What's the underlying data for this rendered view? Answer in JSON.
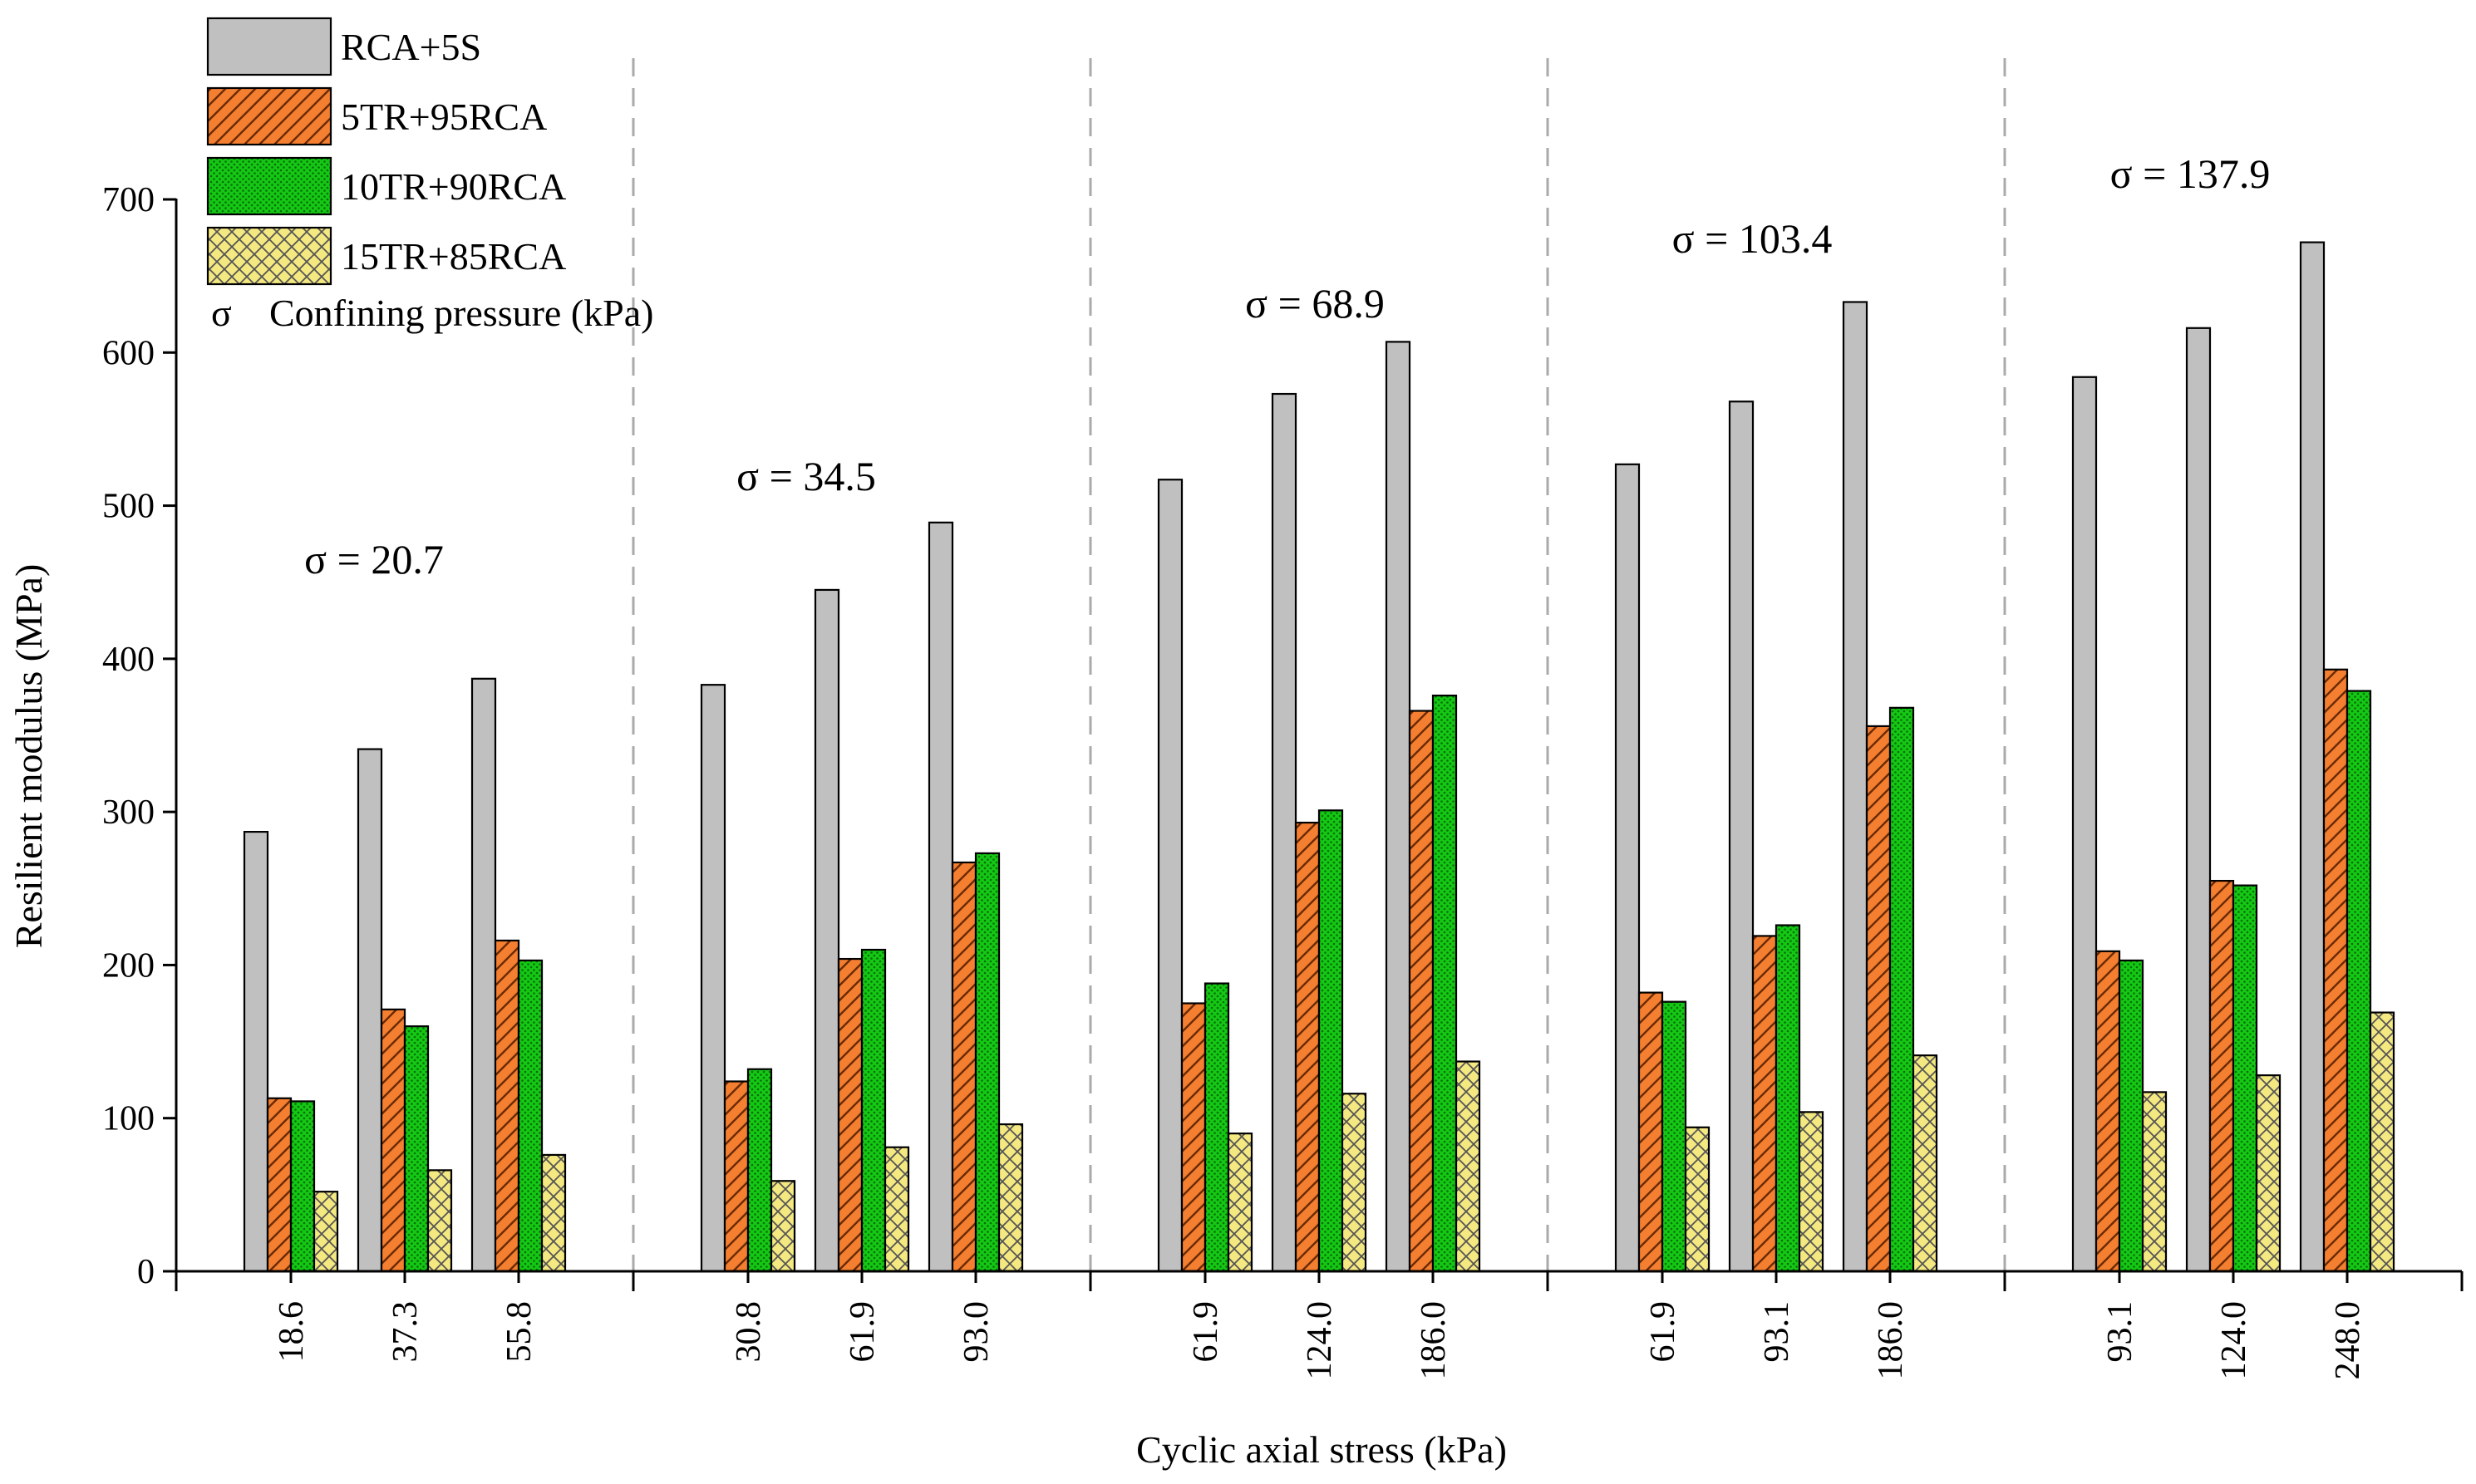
{
  "chart_data": {
    "type": "bar",
    "xlabel": "Cyclic axial stress (kPa)",
    "ylabel": "Resilient modulus (MPa)",
    "ylim": [
      0,
      700
    ],
    "yticks": [
      0,
      100,
      200,
      300,
      400,
      500,
      600,
      700
    ],
    "grid": false,
    "legend_position": "top-left",
    "legend_note": {
      "symbol": "σ",
      "text": "Confining pressure (kPa)"
    },
    "categories": [
      "18.6",
      "37.3",
      "55.8",
      "30.8",
      "61.9",
      "93.0",
      "61.9",
      "124.0",
      "186.0",
      "61.9",
      "93.1",
      "186.0",
      "93.1",
      "124.0",
      "248.0"
    ],
    "groups": [
      {
        "label": "σ = 20.7",
        "categories": [
          0,
          1,
          2
        ]
      },
      {
        "label": "σ = 34.5",
        "categories": [
          3,
          4,
          5
        ]
      },
      {
        "label": "σ = 68.9",
        "categories": [
          6,
          7,
          8
        ]
      },
      {
        "label": "σ = 103.4",
        "categories": [
          9,
          10,
          11
        ]
      },
      {
        "label": "σ = 137.9",
        "categories": [
          12,
          13,
          14
        ]
      }
    ],
    "series": [
      {
        "name": "RCA+5S",
        "color": "#c0c0c0",
        "pattern": "none",
        "values": [
          287,
          341,
          387,
          383,
          445,
          489,
          517,
          573,
          607,
          527,
          568,
          633,
          584,
          616,
          672
        ]
      },
      {
        "name": "5TR+95RCA",
        "color": "#f47f30",
        "pattern": "diagonal",
        "values": [
          113,
          171,
          216,
          124,
          204,
          267,
          175,
          293,
          366,
          182,
          219,
          356,
          209,
          255,
          393
        ]
      },
      {
        "name": "10TR+90RCA",
        "color": "#14c814",
        "pattern": "dots",
        "values": [
          111,
          160,
          203,
          132,
          210,
          273,
          188,
          301,
          376,
          176,
          226,
          368,
          203,
          252,
          379
        ]
      },
      {
        "name": "15TR+85RCA",
        "color": "#f4e880",
        "pattern": "crosshatch",
        "values": [
          52,
          66,
          76,
          59,
          81,
          96,
          90,
          116,
          137,
          94,
          104,
          141,
          117,
          128,
          169
        ]
      }
    ]
  }
}
